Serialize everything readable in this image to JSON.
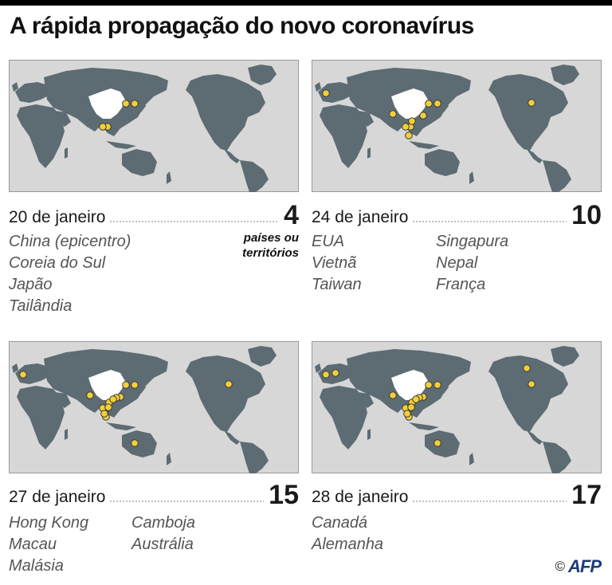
{
  "header": {
    "title": "A rápida propagação do novo coronavírus"
  },
  "colors": {
    "ocean": "#d7d7d7",
    "land": "#5d6b73",
    "china": "#ffffff",
    "dot": "#f2cf3a",
    "dot_stroke": "#3b3b3b"
  },
  "unit_label": [
    "países ou",
    "territórios"
  ],
  "panels": [
    {
      "date": "20 de janeiro",
      "count": "4",
      "countries_left": [
        "China (epicentro)",
        "Coreia do Sul",
        "Japão",
        "Tailândia"
      ],
      "countries_right": [],
      "markers": [
        "china",
        "korea",
        "japan",
        "thailand"
      ]
    },
    {
      "date": "24 de janeiro",
      "count": "10",
      "countries_left": [
        "EUA",
        "Vietnã",
        "Taiwan"
      ],
      "countries_right": [
        "Singapura",
        "Nepal",
        "França"
      ],
      "markers": [
        "china",
        "korea",
        "japan",
        "thailand",
        "usa",
        "vietnam",
        "taiwan",
        "singapore",
        "nepal",
        "france"
      ]
    },
    {
      "date": "27 de janeiro",
      "count": "15",
      "countries_left": [
        "Hong Kong",
        "Macau",
        "Malásia"
      ],
      "countries_right": [
        "Camboja",
        "Austrália"
      ],
      "markers": [
        "china",
        "korea",
        "japan",
        "thailand",
        "usa",
        "vietnam",
        "taiwan",
        "singapore",
        "nepal",
        "france",
        "hongkong",
        "macau",
        "malaysia",
        "cambodia",
        "australia"
      ]
    },
    {
      "date": "28 de janeiro",
      "count": "17",
      "countries_left": [
        "Canadá",
        "Alemanha"
      ],
      "countries_right": [],
      "markers": [
        "china",
        "korea",
        "japan",
        "thailand",
        "usa",
        "vietnam",
        "taiwan",
        "singapore",
        "nepal",
        "france",
        "hongkong",
        "macau",
        "malaysia",
        "cambodia",
        "australia",
        "canada",
        "germany"
      ]
    }
  ],
  "credit": {
    "copyright": "©",
    "agency": "AFP"
  }
}
